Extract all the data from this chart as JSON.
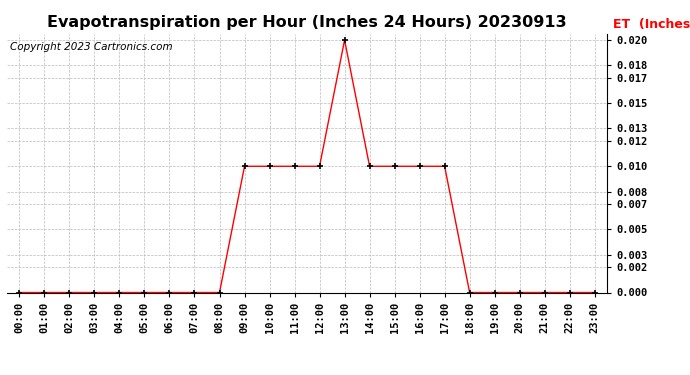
{
  "title": "Evapotranspiration per Hour (Inches 24 Hours) 20230913",
  "copyright": "Copyright 2023 Cartronics.com",
  "legend_label": "ET  (Inches)",
  "hours": [
    "00:00",
    "01:00",
    "02:00",
    "03:00",
    "04:00",
    "05:00",
    "06:00",
    "07:00",
    "08:00",
    "09:00",
    "10:00",
    "11:00",
    "12:00",
    "13:00",
    "14:00",
    "15:00",
    "16:00",
    "17:00",
    "18:00",
    "19:00",
    "20:00",
    "21:00",
    "22:00",
    "23:00"
  ],
  "et_values": [
    0.0,
    0.0,
    0.0,
    0.0,
    0.0,
    0.0,
    0.0,
    0.0,
    0.0,
    0.01,
    0.01,
    0.01,
    0.01,
    0.02,
    0.01,
    0.01,
    0.01,
    0.01,
    0.0,
    0.0,
    0.0,
    0.0,
    0.0,
    0.0
  ],
  "line_color": "#FF0000",
  "marker_color": "#000000",
  "grid_color": "#BBBBBB",
  "background_color": "#FFFFFF",
  "title_color": "#000000",
  "copyright_color": "#000000",
  "legend_color": "#FF0000",
  "ylim": [
    0.0,
    0.0205
  ],
  "yticks": [
    0.0,
    0.002,
    0.003,
    0.005,
    0.007,
    0.008,
    0.01,
    0.012,
    0.013,
    0.015,
    0.017,
    0.018,
    0.02
  ],
  "title_fontsize": 11.5,
  "copyright_fontsize": 7.5,
  "legend_fontsize": 9,
  "tick_fontsize": 7.5,
  "figwidth": 6.9,
  "figheight": 3.75,
  "dpi": 100
}
